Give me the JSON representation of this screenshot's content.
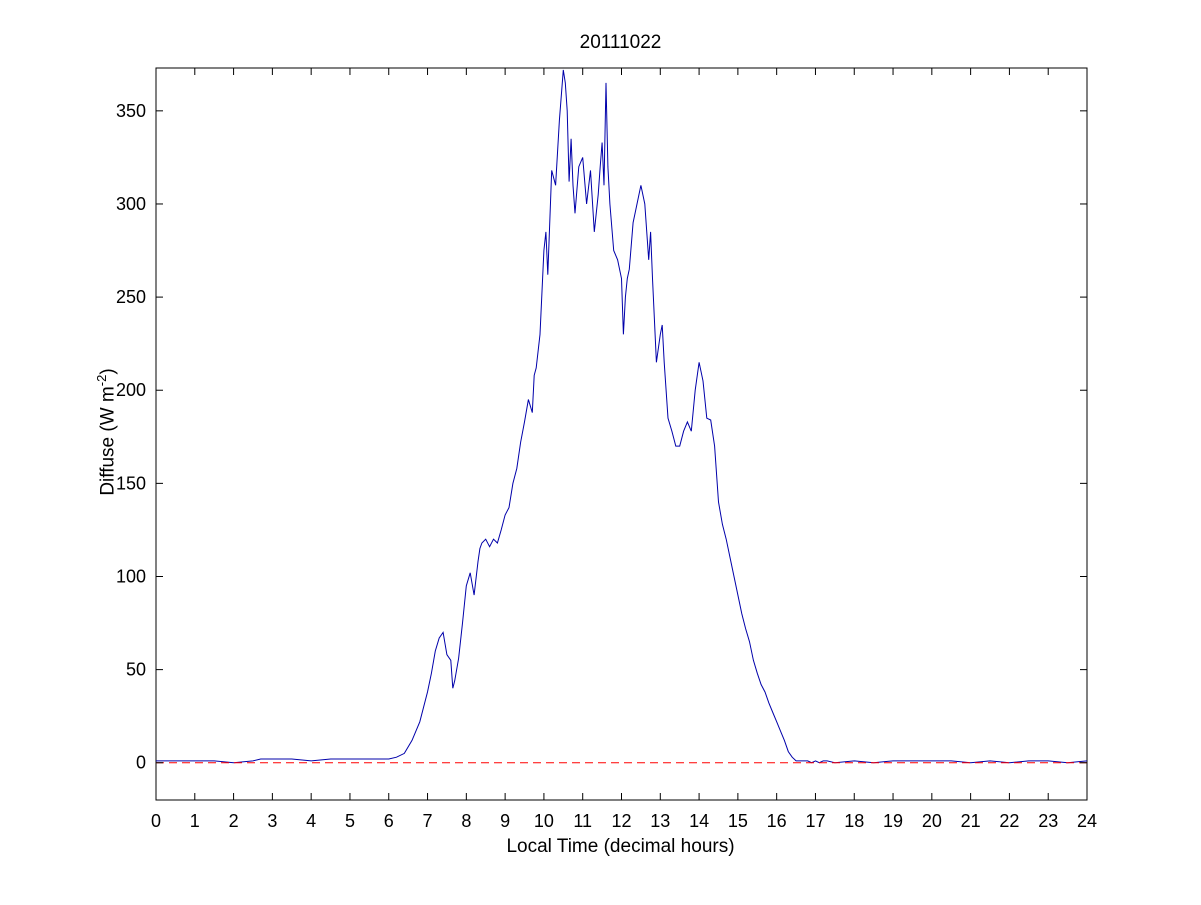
{
  "chart_data": {
    "type": "line",
    "title": "20111022",
    "xlabel": "Local Time (decimal hours)",
    "ylabel_main": "Diffuse (W m",
    "ylabel_sup": "-2",
    "ylabel_close": ")",
    "xlim": [
      0,
      24
    ],
    "ylim": [
      -20,
      373
    ],
    "xticks": [
      0,
      1,
      2,
      3,
      4,
      5,
      6,
      7,
      8,
      9,
      10,
      11,
      12,
      13,
      14,
      15,
      16,
      17,
      18,
      19,
      20,
      21,
      22,
      23,
      24
    ],
    "yticks": [
      0,
      50,
      100,
      150,
      200,
      250,
      300,
      350
    ],
    "grid": false,
    "series": [
      {
        "color": "#0000aa",
        "style": "solid",
        "x": [
          0,
          0.5,
          1,
          1.5,
          2,
          2.5,
          2.7,
          3,
          3.5,
          4,
          4.5,
          5,
          5.5,
          6,
          6.2,
          6.4,
          6.6,
          6.8,
          7,
          7.1,
          7.2,
          7.3,
          7.4,
          7.5,
          7.6,
          7.65,
          7.7,
          7.8,
          7.9,
          8,
          8.1,
          8.2,
          8.3,
          8.35,
          8.4,
          8.5,
          8.6,
          8.7,
          8.8,
          8.9,
          9,
          9.1,
          9.2,
          9.3,
          9.4,
          9.5,
          9.6,
          9.7,
          9.75,
          9.8,
          9.9,
          10,
          10.05,
          10.1,
          10.2,
          10.3,
          10.4,
          10.5,
          10.55,
          10.6,
          10.65,
          10.7,
          10.75,
          10.8,
          10.9,
          11,
          11.1,
          11.2,
          11.3,
          11.4,
          11.45,
          11.5,
          11.55,
          11.6,
          11.65,
          11.7,
          11.8,
          11.9,
          12,
          12.05,
          12.1,
          12.15,
          12.2,
          12.3,
          12.4,
          12.5,
          12.6,
          12.7,
          12.75,
          12.8,
          12.9,
          13,
          13.05,
          13.1,
          13.2,
          13.3,
          13.4,
          13.5,
          13.6,
          13.7,
          13.8,
          13.9,
          14,
          14.1,
          14.2,
          14.3,
          14.4,
          14.5,
          14.6,
          14.7,
          14.8,
          14.9,
          15,
          15.1,
          15.2,
          15.3,
          15.4,
          15.5,
          15.6,
          15.7,
          15.8,
          15.9,
          16,
          16.1,
          16.2,
          16.3,
          16.4,
          16.5,
          16.6,
          16.7,
          16.8,
          16.9,
          17,
          17.1,
          17.2,
          17.3,
          17.5,
          18,
          18.5,
          19,
          19.5,
          20,
          20.5,
          21,
          21.5,
          22,
          22.5,
          23,
          23.5,
          24
        ],
        "y": [
          1,
          1,
          1,
          1,
          0,
          1,
          2,
          2,
          2,
          1,
          2,
          2,
          2,
          2,
          3,
          5,
          12,
          22,
          38,
          48,
          60,
          67,
          70,
          58,
          55,
          40,
          44,
          56,
          75,
          95,
          102,
          90,
          108,
          115,
          118,
          120,
          116,
          120,
          118,
          125,
          133,
          137,
          150,
          158,
          172,
          183,
          195,
          188,
          208,
          212,
          230,
          275,
          285,
          262,
          318,
          310,
          345,
          372,
          365,
          350,
          312,
          335,
          310,
          295,
          320,
          325,
          300,
          318,
          285,
          305,
          320,
          333,
          310,
          365,
          320,
          300,
          275,
          270,
          260,
          230,
          250,
          260,
          265,
          290,
          300,
          310,
          300,
          270,
          285,
          260,
          215,
          230,
          235,
          215,
          185,
          178,
          170,
          170,
          178,
          183,
          178,
          200,
          215,
          205,
          185,
          184,
          170,
          140,
          128,
          120,
          110,
          100,
          90,
          80,
          72,
          65,
          55,
          48,
          42,
          38,
          32,
          27,
          22,
          17,
          12,
          6,
          3,
          1,
          1,
          1,
          1,
          0,
          1,
          0,
          1,
          1,
          0,
          1,
          0,
          1,
          1,
          1,
          1,
          0,
          1,
          0,
          1,
          1,
          0,
          1
        ]
      },
      {
        "color": "#ff0000",
        "style": "dashed",
        "x": [
          0,
          24
        ],
        "y": [
          0,
          0
        ]
      }
    ]
  }
}
